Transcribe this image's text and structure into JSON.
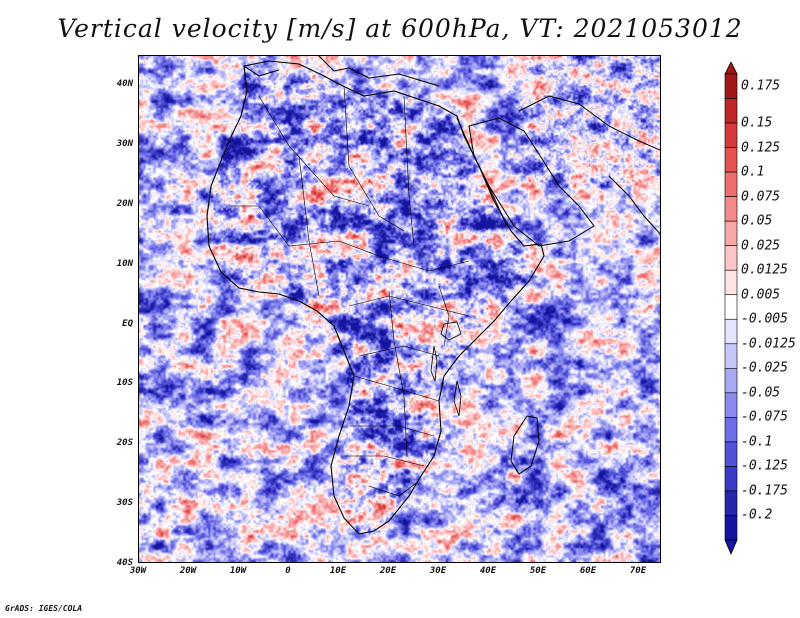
{
  "title": "Vertical velocity [m/s] at 600hPa, VT: 2021053012",
  "credit": "GrADS: IGES/COLA",
  "lat_labels": [
    "40N",
    "30N",
    "20N",
    "10N",
    "EQ",
    "10S",
    "20S",
    "30S",
    "40S"
  ],
  "lon_labels": [
    "30W",
    "20W",
    "10W",
    "0",
    "10E",
    "20E",
    "30E",
    "40E",
    "50E",
    "60E",
    "70E"
  ],
  "colorbar": {
    "labels": [
      "0.175",
      "0.15",
      "0.125",
      "0.1",
      "0.075",
      "0.05",
      "0.025",
      "0.0125",
      "0.005",
      "-0.005",
      "-0.0125",
      "-0.025",
      "-0.05",
      "-0.075",
      "-0.1",
      "-0.125",
      "-0.175",
      "-0.2"
    ],
    "colors": [
      "#a01818",
      "#c02626",
      "#d63a3a",
      "#e55252",
      "#ee6e6e",
      "#f48a8a",
      "#f8a8a8",
      "#fcc6c6",
      "#fee4e4",
      "#ffffff",
      "#e4e4fe",
      "#c6c6fa",
      "#a8a8f4",
      "#8a8aee",
      "#6e6ee6",
      "#5252d8",
      "#3a3ac6",
      "#2626aa",
      "#1414a0"
    ]
  },
  "map": {
    "lon_range": [
      -30,
      75
    ],
    "lat_range": [
      -40,
      45
    ],
    "variable": "Vertical velocity",
    "units": "m/s",
    "level": "600hPa",
    "valid_time": "2021053012"
  }
}
